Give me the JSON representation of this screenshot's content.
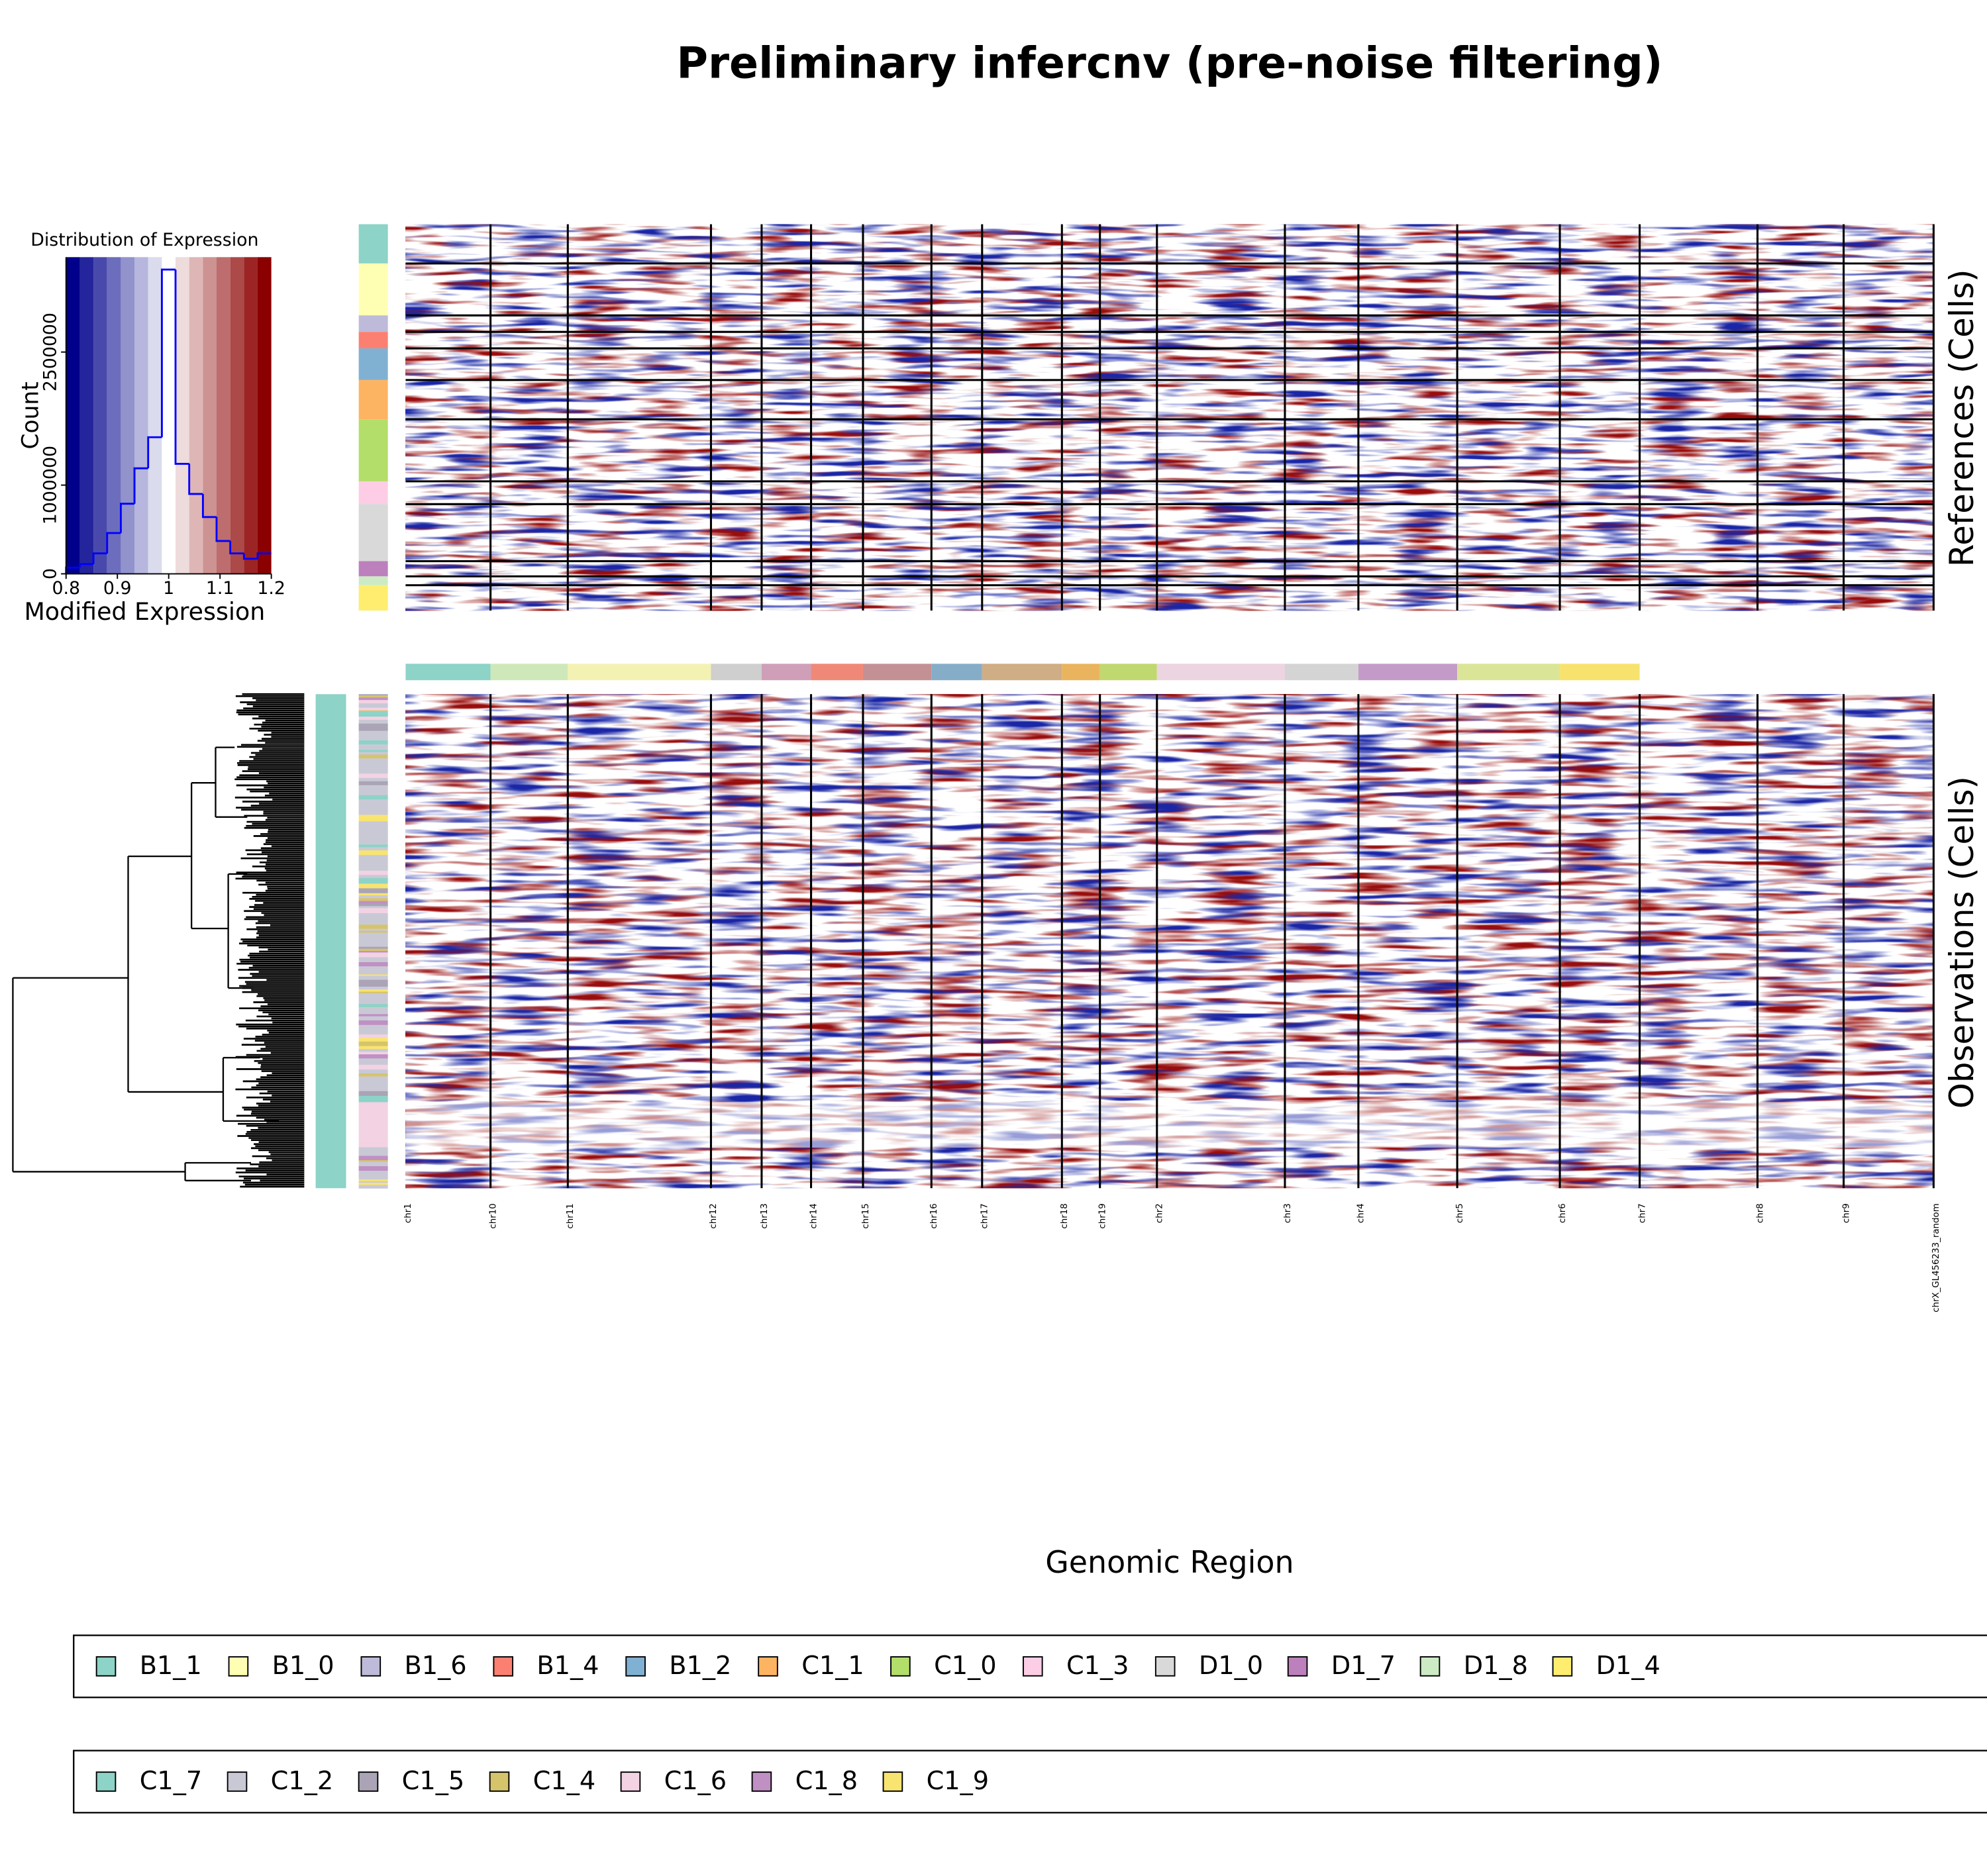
{
  "title": "Preliminary infercnv (pre-noise filtering)",
  "chart_data": [
    {
      "type": "histogram",
      "title": "Distribution of Expression",
      "xlabel": "Modified Expression",
      "ylabel": "Count",
      "bins": [
        0.8,
        0.8267,
        0.8533,
        0.88,
        0.9067,
        0.9333,
        0.96,
        0.9867,
        1.0133,
        1.04,
        1.0667,
        1.0933,
        1.12,
        1.1467,
        1.1733,
        1.2
      ],
      "values": [
        70000,
        110000,
        230000,
        460000,
        790000,
        1190000,
        1540000,
        3430000,
        1240000,
        900000,
        640000,
        370000,
        230000,
        170000,
        230000
      ],
      "color": "#0000ff",
      "xlim": [
        0.8,
        1.2
      ],
      "xticks": [
        0.8,
        0.9,
        1,
        1.1,
        1.2
      ],
      "ylim": [
        0,
        3570000
      ],
      "yticks": [
        0,
        1000000,
        2500000
      ]
    },
    {
      "type": "heatmap",
      "ylabel_top": "References (Cells)",
      "ylabel_bottom": "Observations (Cells)",
      "xlabel": "Genomic Region",
      "categories": [
        "chr1",
        "chr10",
        "chr11",
        "chr12",
        "chr13",
        "chr14",
        "chr15",
        "chr16",
        "chr17",
        "chr18",
        "chr19",
        "chr2",
        "chr3",
        "chr4",
        "chr5",
        "chr6",
        "chr7",
        "chr8",
        "chr9",
        "chrX_GL456233_random"
      ],
      "legend_rows": [
        [
          {
            "name": "B1_1",
            "color": "#8dd3c7"
          },
          {
            "name": "B1_0",
            "color": "#ffffb3"
          },
          {
            "name": "B1_6",
            "color": "#bebada"
          },
          {
            "name": "B1_4",
            "color": "#fb8072"
          },
          {
            "name": "B1_2",
            "color": "#80b1d3"
          },
          {
            "name": "C1_1",
            "color": "#fdb462"
          },
          {
            "name": "C1_0",
            "color": "#b3de69"
          },
          {
            "name": "C1_3",
            "color": "#fccde5"
          },
          {
            "name": "D1_0",
            "color": "#d9d9d9"
          },
          {
            "name": "D1_7",
            "color": "#bc80bd"
          },
          {
            "name": "D1_8",
            "color": "#ccebc5"
          },
          {
            "name": "D1_4",
            "color": "#ffed6f"
          }
        ],
        [
          {
            "name": "C1_7",
            "color": "#8dd3c7"
          },
          {
            "name": "C1_2",
            "color": "#c9c9d6"
          },
          {
            "name": "C1_5",
            "color": "#aaa4b6"
          },
          {
            "name": "C1_4",
            "color": "#d6c46c"
          },
          {
            "name": "C1_6",
            "color": "#f2d2e3"
          },
          {
            "name": "C1_8",
            "color": "#c08fc4"
          },
          {
            "name": "C1_9",
            "color": "#f8e470"
          }
        ]
      ]
    }
  ]
}
